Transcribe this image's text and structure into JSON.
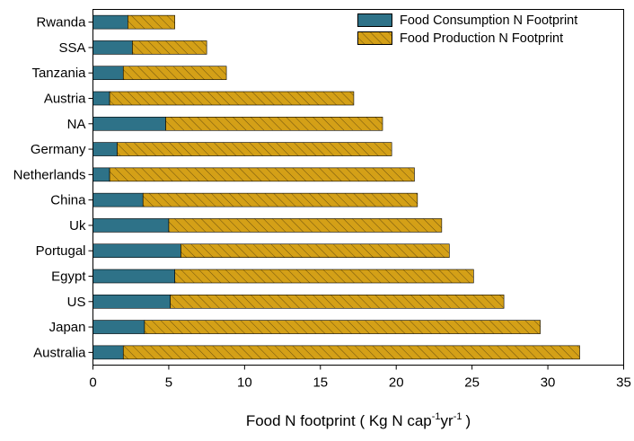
{
  "chart_data": {
    "type": "bar",
    "orientation": "horizontal",
    "stacked": true,
    "categories": [
      "Rwanda",
      "SSA",
      "Tanzania",
      "Austria",
      "NA",
      "Germany",
      "Netherlands",
      "China",
      "Uk",
      "Portugal",
      "Egypt",
      "US",
      "Japan",
      "Australia"
    ],
    "series": [
      {
        "name": "Food Consumption N Footprint",
        "color": "#2e7288",
        "pattern": "solid",
        "values": [
          2.3,
          2.6,
          2.0,
          1.1,
          4.8,
          1.6,
          1.1,
          3.3,
          5.0,
          5.8,
          5.4,
          5.1,
          3.4,
          2.0
        ]
      },
      {
        "name": "Food Production N Footprint",
        "color": "#d4a017",
        "pattern": "hatched",
        "values": [
          3.1,
          4.9,
          6.8,
          16.1,
          14.3,
          18.1,
          20.1,
          18.1,
          18.0,
          17.7,
          19.7,
          22.0,
          26.1,
          30.1
        ]
      }
    ],
    "xlim": [
      0,
      35
    ],
    "xticks": [
      0,
      5,
      10,
      15,
      20,
      25,
      30,
      35
    ],
    "xlabel": {
      "main": "Food N footprint ( Kg N cap",
      "sup1": "-1",
      "mid": "yr",
      "sup2": "-1",
      "end": ")"
    },
    "ylabel": "",
    "legend_position": "top-right",
    "grid": false
  }
}
